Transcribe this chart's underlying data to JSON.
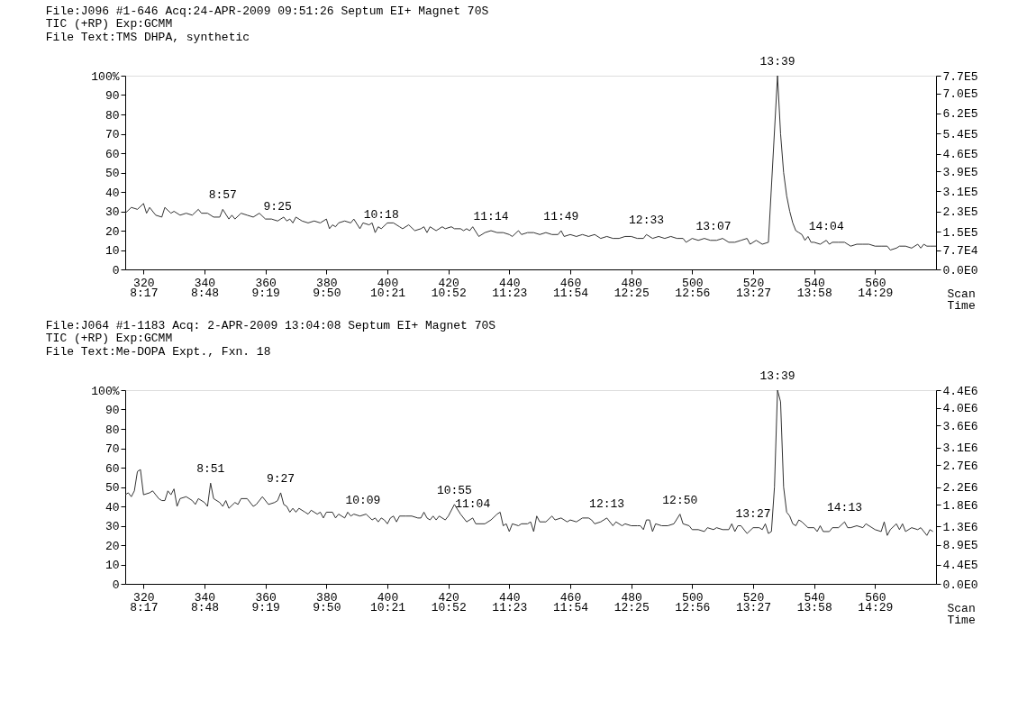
{
  "chart_data": [
    {
      "type": "line",
      "title": "File:J096 #1-646 Acq:24-APR-2009 09:51:26 Septum EI+ Magnet 70S",
      "subtitle": "TIC (+RP)   Exp:GCMM\nFile Text:TMS DHPA, synthetic",
      "xlabel": "Scan",
      "x2label": "Time",
      "x": [
        314,
        316,
        318,
        320,
        321,
        322,
        324,
        326,
        327,
        329,
        330,
        332,
        334,
        336,
        338,
        339,
        341,
        343,
        345,
        346,
        348,
        349,
        350,
        352,
        354,
        356,
        358,
        360,
        362,
        364,
        366,
        367,
        368,
        369,
        370,
        372,
        374,
        376,
        378,
        380,
        381,
        382,
        383,
        384,
        386,
        388,
        389,
        391,
        392,
        394,
        395,
        396,
        397,
        398,
        400,
        402,
        404,
        405,
        407,
        409,
        411,
        412,
        413,
        414,
        416,
        418,
        419,
        421,
        422,
        424,
        425,
        426,
        427,
        428,
        430,
        432,
        434,
        436,
        438,
        440,
        441,
        443,
        444,
        446,
        448,
        450,
        452,
        454,
        456,
        457,
        458,
        460,
        462,
        464,
        466,
        468,
        470,
        472,
        474,
        476,
        478,
        480,
        482,
        484,
        485,
        487,
        489,
        491,
        493,
        495,
        497,
        498,
        500,
        502,
        504,
        506,
        507,
        508,
        510,
        512,
        514,
        516,
        518,
        519,
        521,
        523,
        525,
        528,
        529,
        530,
        531,
        532,
        533,
        534,
        535,
        536,
        537,
        538,
        539,
        540,
        542,
        544,
        545,
        546,
        548,
        550,
        552,
        554,
        556,
        558,
        560,
        562,
        564,
        565,
        567,
        568,
        570,
        572,
        574,
        575,
        576,
        577,
        578,
        580
      ],
      "series": [
        {
          "color": "#333333",
          "values": [
            29,
            32,
            31,
            34,
            29,
            32,
            28,
            27,
            32,
            29,
            30,
            28,
            29,
            28,
            31,
            29,
            29,
            27,
            27,
            31,
            26,
            28,
            26,
            29,
            28,
            27,
            29,
            26,
            26,
            25,
            27,
            25,
            26,
            24,
            27,
            25,
            24,
            25,
            24,
            26,
            21,
            23,
            22,
            24,
            25,
            24,
            26,
            21,
            24,
            23,
            24,
            19,
            22,
            21,
            24,
            24,
            22,
            21,
            23,
            20,
            21,
            22,
            19,
            22,
            20,
            22,
            21,
            22,
            21,
            21,
            20,
            21,
            20,
            22,
            17,
            19,
            20,
            19,
            19,
            18,
            17,
            20,
            18,
            19,
            19,
            18,
            19,
            18,
            18,
            20,
            17,
            18,
            17,
            18,
            17,
            18,
            16,
            17,
            16,
            16,
            17,
            17,
            16,
            16,
            18,
            16,
            17,
            16,
            17,
            16,
            16,
            14,
            16,
            15,
            16,
            15,
            15,
            15,
            16,
            14,
            14,
            15,
            16,
            13,
            15,
            13,
            14,
            100,
            70,
            50,
            38,
            30,
            24,
            20,
            19,
            18,
            15,
            17,
            14,
            14,
            13,
            15,
            13,
            14,
            14,
            14,
            12,
            13,
            13,
            13,
            12,
            12,
            12,
            10,
            11,
            12,
            12,
            11,
            13,
            11,
            13,
            12,
            12,
            12
          ]
        }
      ],
      "xlim": [
        314,
        580
      ],
      "xticks": [
        320,
        340,
        360,
        380,
        400,
        420,
        440,
        460,
        480,
        500,
        520,
        540,
        560
      ],
      "x2lim": [
        8.128,
        15.0
      ],
      "x2ticks": [
        {
          "value": 8.2833,
          "label": "8:17"
        },
        {
          "value": 8.8,
          "label": "8:48"
        },
        {
          "value": 9.3167,
          "label": "9:19"
        },
        {
          "value": 9.8333,
          "label": "9:50"
        },
        {
          "value": 10.35,
          "label": "10:21"
        },
        {
          "value": 10.8667,
          "label": "10:52"
        },
        {
          "value": 11.3833,
          "label": "11:23"
        },
        {
          "value": 11.9,
          "label": "11:54"
        },
        {
          "value": 12.4167,
          "label": "12:25"
        },
        {
          "value": 12.9333,
          "label": "12:56"
        },
        {
          "value": 13.45,
          "label": "13:27"
        },
        {
          "value": 13.9667,
          "label": "13:58"
        },
        {
          "value": 14.4833,
          "label": "14:29"
        }
      ],
      "ylim": [
        0,
        100
      ],
      "yticks": [
        0,
        10,
        20,
        30,
        40,
        50,
        60,
        70,
        80,
        90,
        {
          "value": 100,
          "label": "100%"
        }
      ],
      "y2lim": [
        0,
        770000
      ],
      "y2ticks": [
        {
          "value": 0,
          "label": "0.0E0"
        },
        {
          "value": 77000,
          "label": "7.7E4"
        },
        {
          "value": 150000,
          "label": "1.5E5"
        },
        {
          "value": 230000,
          "label": "2.3E5"
        },
        {
          "value": 310000,
          "label": "3.1E5"
        },
        {
          "value": 390000,
          "label": "3.9E5"
        },
        {
          "value": 460000,
          "label": "4.6E5"
        },
        {
          "value": 540000,
          "label": "5.4E5"
        },
        {
          "value": 620000,
          "label": "6.2E5"
        },
        {
          "value": 700000,
          "label": "7.0E5"
        },
        {
          "value": 770000,
          "label": "7.7E5"
        }
      ],
      "annotations": [
        {
          "text": "8:57",
          "x": 346,
          "y": 31
        },
        {
          "text": "9:25",
          "x": 364,
          "y": 25
        },
        {
          "text": "10:18",
          "x": 398,
          "y": 21
        },
        {
          "text": "11:14",
          "x": 434,
          "y": 20
        },
        {
          "text": "11:49",
          "x": 457,
          "y": 20
        },
        {
          "text": "12:33",
          "x": 485,
          "y": 18
        },
        {
          "text": "13:07",
          "x": 507,
          "y": 15
        },
        {
          "text": "13:39",
          "x": 528,
          "y": 100
        },
        {
          "text": "14:04",
          "x": 544,
          "y": 15
        }
      ],
      "grid": false
    },
    {
      "type": "line",
      "title": "File:J064 #1-1183 Acq: 2-APR-2009 13:04:08 Septum EI+ Magnet 70S",
      "subtitle": "TIC (+RP)   Exp:GCMM\nFile Text:Me-DOPA Expt., Fxn. 18",
      "xlabel": "Scan",
      "x2label": "Time",
      "x": [
        314,
        315,
        316,
        317,
        318,
        319,
        320,
        322,
        323,
        324,
        325,
        326,
        327,
        328,
        329,
        330,
        331,
        332,
        334,
        336,
        337,
        338,
        340,
        341,
        342,
        343,
        345,
        346,
        347,
        348,
        350,
        351,
        352,
        354,
        356,
        357,
        359,
        361,
        363,
        364,
        365,
        366,
        367,
        368,
        369,
        370,
        371,
        373,
        374,
        375,
        377,
        378,
        379,
        380,
        382,
        383,
        384,
        386,
        387,
        388,
        389,
        391,
        393,
        395,
        396,
        397,
        398,
        399,
        400,
        401,
        402,
        403,
        404,
        406,
        408,
        410,
        411,
        412,
        413,
        414,
        415,
        416,
        417,
        419,
        420,
        422,
        424,
        426,
        428,
        429,
        432,
        434,
        436,
        437,
        438,
        439,
        440,
        441,
        443,
        444,
        446,
        447,
        448,
        449,
        450,
        452,
        454,
        455,
        457,
        459,
        460,
        462,
        464,
        466,
        467,
        468,
        470,
        472,
        474,
        475,
        477,
        478,
        480,
        482,
        483,
        484,
        485,
        486,
        487,
        488,
        490,
        492,
        494,
        496,
        497,
        499,
        500,
        502,
        504,
        505,
        507,
        508,
        510,
        512,
        513,
        514,
        515,
        516,
        518,
        520,
        522,
        523,
        524,
        525,
        526,
        527,
        528,
        529,
        530,
        531,
        532,
        533,
        534,
        535,
        536,
        538,
        540,
        541,
        542,
        543,
        545,
        546,
        548,
        550,
        551,
        552,
        554,
        556,
        557,
        559,
        560,
        562,
        563,
        564,
        565,
        567,
        568,
        569,
        570,
        572,
        574,
        575,
        577,
        578,
        579
      ],
      "series": [
        {
          "color": "#333333",
          "values": [
            46,
            47,
            45,
            48,
            58,
            59,
            46,
            47,
            48,
            46,
            44,
            43,
            43,
            48,
            46,
            49,
            40,
            44,
            45,
            43,
            41,
            44,
            42,
            40,
            52,
            44,
            42,
            40,
            43,
            39,
            42,
            41,
            44,
            44,
            40,
            41,
            45,
            41,
            42,
            43,
            47,
            41,
            40,
            37,
            39,
            37,
            39,
            37,
            36,
            38,
            36,
            37,
            34,
            37,
            37,
            34,
            36,
            34,
            37,
            35,
            36,
            35,
            36,
            33,
            34,
            32,
            34,
            33,
            31,
            34,
            35,
            32,
            35,
            35,
            35,
            34,
            34,
            37,
            34,
            33,
            35,
            33,
            35,
            33,
            35,
            41,
            36,
            32,
            34,
            31,
            31,
            33,
            36,
            37,
            30,
            31,
            27,
            31,
            30,
            31,
            31,
            32,
            27,
            35,
            32,
            32,
            35,
            33,
            34,
            32,
            33,
            32,
            34,
            34,
            33,
            31,
            32,
            34,
            30,
            32,
            30,
            31,
            30,
            30,
            30,
            28,
            33,
            33,
            27,
            31,
            30,
            30,
            31,
            36,
            31,
            30,
            28,
            28,
            27,
            29,
            28,
            29,
            28,
            28,
            31,
            27,
            30,
            30,
            26,
            29,
            29,
            28,
            31,
            26,
            27,
            50,
            100,
            94,
            50,
            37,
            35,
            31,
            30,
            33,
            32,
            29,
            29,
            27,
            30,
            27,
            27,
            29,
            29,
            32,
            29,
            29,
            30,
            29,
            31,
            29,
            28,
            27,
            32,
            25,
            28,
            31,
            28,
            31,
            27,
            29,
            28,
            29,
            25,
            28,
            27
          ]
        }
      ],
      "xlim": [
        314,
        580
      ],
      "xticks": [
        320,
        340,
        360,
        380,
        400,
        420,
        440,
        460,
        480,
        500,
        520,
        540,
        560
      ],
      "x2lim": [
        8.128,
        15.0
      ],
      "x2ticks": [
        {
          "value": 8.2833,
          "label": "8:17"
        },
        {
          "value": 8.8,
          "label": "8:48"
        },
        {
          "value": 9.3167,
          "label": "9:19"
        },
        {
          "value": 9.8333,
          "label": "9:50"
        },
        {
          "value": 10.35,
          "label": "10:21"
        },
        {
          "value": 10.8667,
          "label": "10:52"
        },
        {
          "value": 11.3833,
          "label": "11:23"
        },
        {
          "value": 11.9,
          "label": "11:54"
        },
        {
          "value": 12.4167,
          "label": "12:25"
        },
        {
          "value": 12.9333,
          "label": "12:56"
        },
        {
          "value": 13.45,
          "label": "13:27"
        },
        {
          "value": 13.9667,
          "label": "13:58"
        },
        {
          "value": 14.4833,
          "label": "14:29"
        }
      ],
      "ylim": [
        0,
        100
      ],
      "yticks": [
        0,
        10,
        20,
        30,
        40,
        50,
        60,
        70,
        80,
        90,
        {
          "value": 100,
          "label": "100%"
        }
      ],
      "y2lim": [
        0,
        4400000
      ],
      "y2ticks": [
        {
          "value": 0,
          "label": "0.0E0"
        },
        {
          "value": 440000,
          "label": "4.4E5"
        },
        {
          "value": 890000,
          "label": "8.9E5"
        },
        {
          "value": 1300000,
          "label": "1.3E6"
        },
        {
          "value": 1800000,
          "label": "1.8E6"
        },
        {
          "value": 2200000,
          "label": "2.2E6"
        },
        {
          "value": 2700000,
          "label": "2.7E6"
        },
        {
          "value": 3100000,
          "label": "3.1E6"
        },
        {
          "value": 3600000,
          "label": "3.6E6"
        },
        {
          "value": 4000000,
          "label": "4.0E6"
        },
        {
          "value": 4400000,
          "label": "4.4E6"
        }
      ],
      "annotations": [
        {
          "text": "8:51",
          "x": 342,
          "y": 52
        },
        {
          "text": "9:27",
          "x": 365,
          "y": 47
        },
        {
          "text": "10:09",
          "x": 392,
          "y": 36
        },
        {
          "text": "10:55",
          "x": 422,
          "y": 41
        },
        {
          "text": "11:04",
          "x": 428,
          "y": 34
        },
        {
          "text": "12:13",
          "x": 472,
          "y": 34
        },
        {
          "text": "12:50",
          "x": 496,
          "y": 36
        },
        {
          "text": "13:27",
          "x": 520,
          "y": 29
        },
        {
          "text": "13:39",
          "x": 528,
          "y": 100
        },
        {
          "text": "14:13",
          "x": 550,
          "y": 32
        }
      ],
      "grid": false
    }
  ]
}
